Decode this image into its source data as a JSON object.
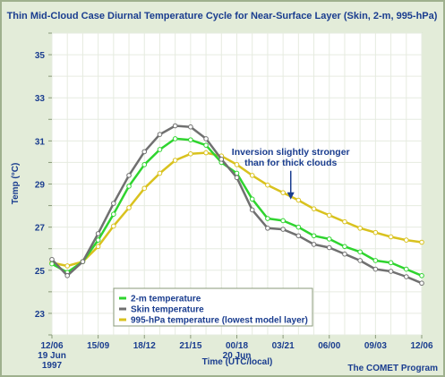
{
  "chart_data": {
    "type": "line",
    "title": "Thin Mid-Cloud Case Diurnal Temperature Cycle for Near-Surface Layer (Skin, 2-m, 995-hPa)",
    "xlabel": "Time (UTC/local)",
    "ylabel": "Temp (°C)",
    "ylim": [
      22,
      36
    ],
    "yticks": [
      23,
      25,
      27,
      29,
      31,
      33,
      35
    ],
    "xlim": [
      0,
      24
    ],
    "xticks": [
      0,
      3,
      6,
      9,
      12,
      15,
      18,
      21,
      24
    ],
    "xtick_labels": [
      [
        "12/06",
        "19 Jun",
        "1997"
      ],
      [
        "15/09"
      ],
      [
        "18/12"
      ],
      [
        "21/15"
      ],
      [
        "00/18",
        "20 Jun"
      ],
      [
        "03/21"
      ],
      [
        "06/00"
      ],
      [
        "09/03"
      ],
      [
        "12/06"
      ]
    ],
    "grid": true,
    "legend_position": "bottom-left",
    "series": [
      {
        "name": "2-m temperature",
        "color": "#2fd42f",
        "x": [
          0,
          1,
          2,
          3,
          4,
          5,
          6,
          7,
          8,
          9,
          10,
          11,
          12,
          13,
          14,
          15,
          16,
          17,
          18,
          19,
          20,
          21,
          22,
          23,
          24
        ],
        "values": [
          25.3,
          24.9,
          25.4,
          26.4,
          27.6,
          28.9,
          29.9,
          30.6,
          31.1,
          31.05,
          30.8,
          30.0,
          29.5,
          28.3,
          27.4,
          27.3,
          27.0,
          26.6,
          26.45,
          26.1,
          25.85,
          25.45,
          25.35,
          25.05,
          24.75
        ]
      },
      {
        "name": "Skin temperature",
        "color": "#707070",
        "x": [
          0,
          1,
          2,
          3,
          4,
          5,
          6,
          7,
          8,
          9,
          10,
          11,
          12,
          13,
          14,
          15,
          16,
          17,
          18,
          19,
          20,
          21,
          22,
          23,
          24
        ],
        "values": [
          25.5,
          24.75,
          25.4,
          26.7,
          28.1,
          29.4,
          30.5,
          31.3,
          31.7,
          31.65,
          31.1,
          30.15,
          29.3,
          27.8,
          26.95,
          26.9,
          26.6,
          26.2,
          26.05,
          25.75,
          25.45,
          25.05,
          24.95,
          24.7,
          24.4
        ]
      },
      {
        "name": "995-hPa temperature (lowest model layer)",
        "color": "#d9c21e",
        "x": [
          0,
          1,
          2,
          3,
          4,
          5,
          6,
          7,
          8,
          9,
          10,
          11,
          12,
          13,
          14,
          15,
          16,
          17,
          18,
          19,
          20,
          21,
          22,
          23,
          24
        ],
        "values": [
          25.35,
          25.2,
          25.4,
          26.1,
          27.05,
          27.9,
          28.8,
          29.5,
          30.1,
          30.4,
          30.45,
          30.3,
          29.9,
          29.4,
          28.95,
          28.6,
          28.25,
          27.85,
          27.55,
          27.25,
          26.95,
          26.75,
          26.55,
          26.4,
          26.3
        ]
      }
    ],
    "annotation": {
      "lines": [
        "Inversion slightly stronger",
        "than for thick clouds"
      ],
      "x": 15.5,
      "y": 28.2
    }
  },
  "credit": "The COMET Program"
}
